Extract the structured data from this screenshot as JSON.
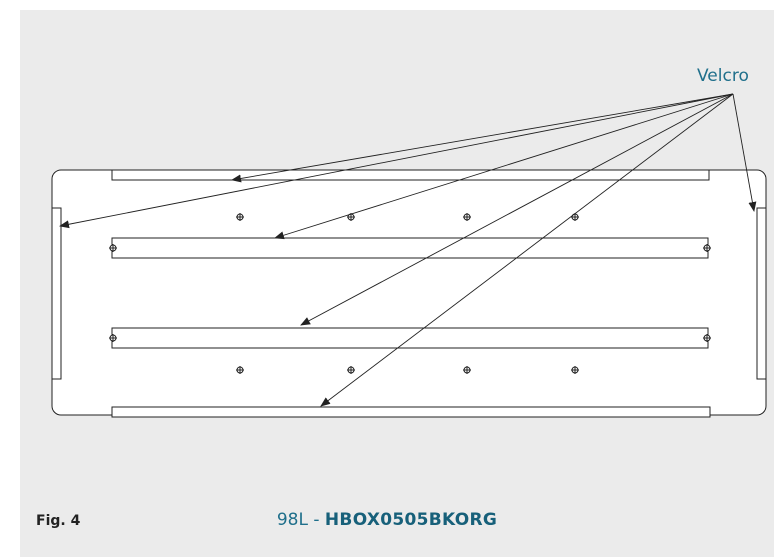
{
  "diagram": {
    "callout_label": "Velcro",
    "figure_label": "Fig. 4",
    "caption_prefix": "98L - ",
    "caption_code": "HBOX0505BKORG",
    "callout_count": 6
  },
  "colors": {
    "background": "#ebebeb",
    "line": "#222222",
    "accent": "#1f6f8b"
  }
}
